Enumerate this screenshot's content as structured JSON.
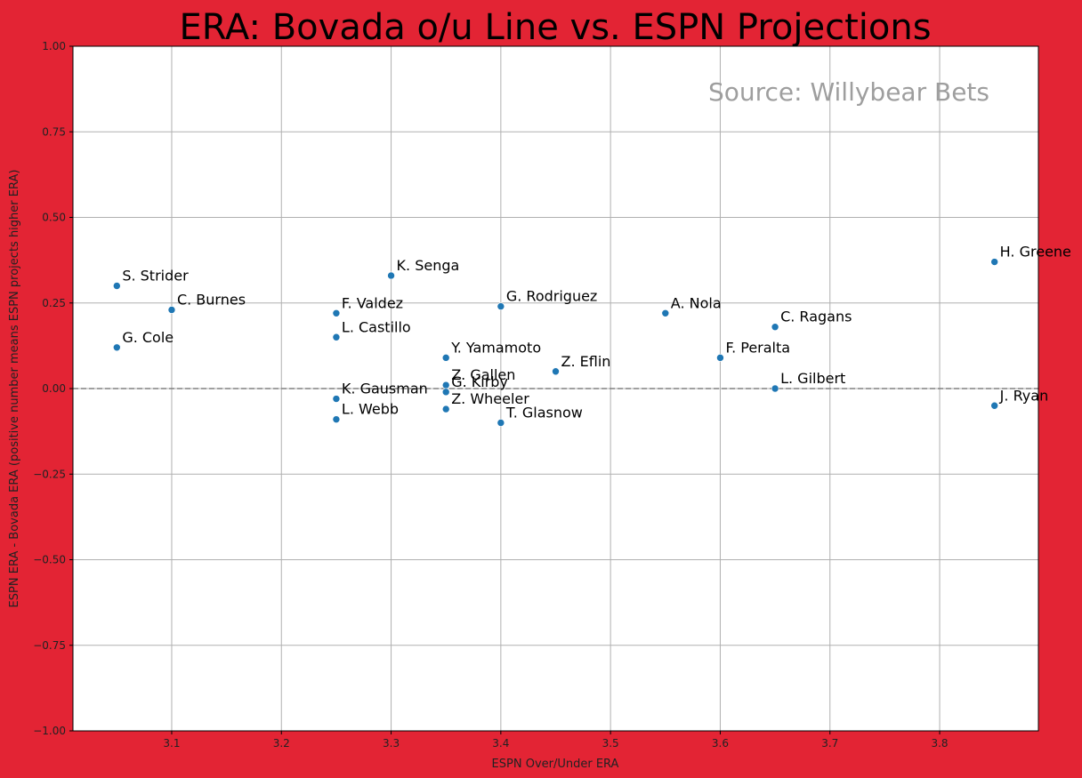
{
  "chart_data": {
    "type": "scatter",
    "title": "ERA: Bovada o/u Line vs. ESPN Projections",
    "xlabel": "ESPN Over/Under ERA",
    "ylabel": "ESPN ERA - Bovada ERA (positive number means ESPN projects higher ERA)",
    "annotation": "Source: Willybear Bets",
    "xlim": [
      3.01,
      3.89
    ],
    "ylim": [
      -1.0,
      1.0
    ],
    "x_ticks": [
      "3.1",
      "3.2",
      "3.3",
      "3.4",
      "3.5",
      "3.6",
      "3.7",
      "3.8"
    ],
    "y_ticks": [
      "1.00",
      "0.75",
      "0.50",
      "0.25",
      "0.00",
      "−0.25",
      "−0.50",
      "−0.75",
      "−1.00"
    ],
    "grid": true,
    "reference_line": {
      "y": 0,
      "style": "dashed",
      "color": "#808080"
    },
    "marker_color": "#1f77b4",
    "points": [
      {
        "label": "S. Strider",
        "x": 3.05,
        "y": 0.3
      },
      {
        "label": "G. Cole",
        "x": 3.05,
        "y": 0.12
      },
      {
        "label": "C. Burnes",
        "x": 3.1,
        "y": 0.23
      },
      {
        "label": "F. Valdez",
        "x": 3.25,
        "y": 0.22
      },
      {
        "label": "L. Castillo",
        "x": 3.25,
        "y": 0.15
      },
      {
        "label": "K. Gausman",
        "x": 3.25,
        "y": -0.03
      },
      {
        "label": "L. Webb",
        "x": 3.25,
        "y": -0.09
      },
      {
        "label": "K. Senga",
        "x": 3.3,
        "y": 0.33
      },
      {
        "label": "Y. Yamamoto",
        "x": 3.35,
        "y": 0.09
      },
      {
        "label": "Z. Gallen",
        "x": 3.35,
        "y": 0.01
      },
      {
        "label": "G. Kirby",
        "x": 3.35,
        "y": -0.01
      },
      {
        "label": "Z. Wheeler",
        "x": 3.35,
        "y": -0.06
      },
      {
        "label": "G. Rodriguez",
        "x": 3.4,
        "y": 0.24
      },
      {
        "label": "T. Glasnow",
        "x": 3.4,
        "y": -0.1
      },
      {
        "label": "Z. Eflin",
        "x": 3.45,
        "y": 0.05
      },
      {
        "label": "A. Nola",
        "x": 3.55,
        "y": 0.22
      },
      {
        "label": "F. Peralta",
        "x": 3.6,
        "y": 0.09
      },
      {
        "label": "C. Ragans",
        "x": 3.65,
        "y": 0.18
      },
      {
        "label": "L. Gilbert",
        "x": 3.65,
        "y": 0.0
      },
      {
        "label": "H. Greene",
        "x": 3.85,
        "y": 0.37
      },
      {
        "label": "J. Ryan",
        "x": 3.85,
        "y": -0.05
      }
    ]
  }
}
